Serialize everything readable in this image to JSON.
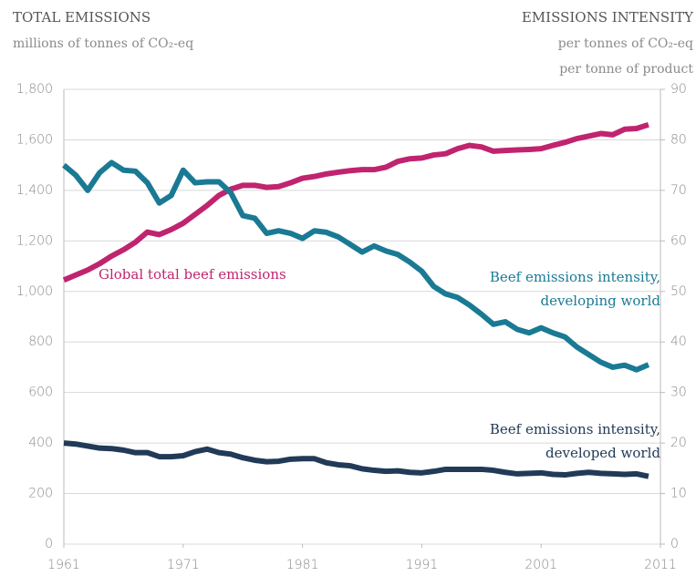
{
  "chart_data": {
    "type": "line",
    "title_left": "TOTAL EMISSIONS",
    "subtitle_left": "millions of tonnes of CO₂-eq",
    "title_right": "EMISSIONS INTENSITY",
    "subtitle_right": [
      "per tonnes of CO₂-eq",
      "per tonne of product"
    ],
    "x": [
      1961,
      1962,
      1963,
      1964,
      1965,
      1966,
      1967,
      1968,
      1969,
      1970,
      1971,
      1972,
      1973,
      1974,
      1975,
      1976,
      1977,
      1978,
      1979,
      1980,
      1981,
      1982,
      1983,
      1984,
      1985,
      1986,
      1987,
      1988,
      1989,
      1990,
      1991,
      1992,
      1993,
      1994,
      1995,
      1996,
      1997,
      1998,
      1999,
      2000,
      2001,
      2002,
      2003,
      2004,
      2005,
      2006,
      2007,
      2008,
      2009,
      2010
    ],
    "xlim": [
      1961,
      2011
    ],
    "xticks": [
      1961,
      1971,
      1981,
      1991,
      2001,
      2011
    ],
    "ylim": [
      0,
      1800
    ],
    "yticks": [
      0,
      200,
      400,
      600,
      800,
      {
        "value": 1000,
        "label": "1,000"
      },
      {
        "value": 1200,
        "label": "1,200"
      },
      {
        "value": 1400,
        "label": "1,400"
      },
      {
        "value": 1600,
        "label": "1,600"
      },
      {
        "value": 1800,
        "label": "1,800"
      }
    ],
    "y2lim": [
      0,
      90
    ],
    "y2ticks": [
      0,
      10,
      20,
      30,
      40,
      50,
      60,
      70,
      80,
      90
    ],
    "grid": true,
    "series": [
      {
        "name": "Global total beef emissions",
        "color": "#c0246f",
        "values": [
          1045,
          1065,
          1085,
          1110,
          1140,
          1165,
          1195,
          1235,
          1225,
          1245,
          1270,
          1305,
          1340,
          1380,
          1405,
          1420,
          1420,
          1412,
          1415,
          1430,
          1448,
          1455,
          1465,
          1472,
          1478,
          1482,
          1482,
          1492,
          1515,
          1525,
          1528,
          1540,
          1545,
          1565,
          1578,
          1572,
          1555,
          1558,
          1560,
          1562,
          1565,
          1578,
          1590,
          1605,
          1615,
          1625,
          1620,
          1642,
          1645,
          1660
        ]
      },
      {
        "name": "Beef emissions intensity, developing world",
        "color": "#1a7a94",
        "axis": "y2",
        "values": [
          75,
          73,
          70,
          73.5,
          75.5,
          74,
          73.8,
          71.5,
          67.5,
          69,
          74,
          71.5,
          71.7,
          71.7,
          69.5,
          65,
          64.5,
          61.5,
          62,
          61.5,
          60.5,
          62,
          61.7,
          60.8,
          59.3,
          57.8,
          59,
          58,
          57.3,
          55.8,
          54,
          51,
          49.5,
          48.8,
          47.3,
          45.5,
          43.5,
          44,
          42.5,
          41.8,
          42.8,
          41.8,
          41,
          39,
          37.5,
          36,
          35,
          35.4,
          34.5,
          35.5
        ]
      },
      {
        "name": "Beef emissions intensity, developed world",
        "color": "#213a57",
        "axis": "y2",
        "values": [
          20,
          19.8,
          19.4,
          19,
          18.9,
          18.6,
          18.1,
          18.1,
          17.3,
          17.3,
          17.5,
          18.3,
          18.8,
          18.1,
          17.8,
          17.1,
          16.6,
          16.3,
          16.4,
          16.8,
          16.9,
          16.9,
          16.1,
          15.7,
          15.5,
          14.9,
          14.6,
          14.4,
          14.5,
          14.2,
          14.1,
          14.4,
          14.8,
          14.8,
          14.8,
          14.8,
          14.6,
          14.2,
          13.9,
          14,
          14.1,
          13.8,
          13.7,
          14,
          14.2,
          14,
          13.9,
          13.8,
          13.9,
          13.4
        ]
      }
    ]
  }
}
